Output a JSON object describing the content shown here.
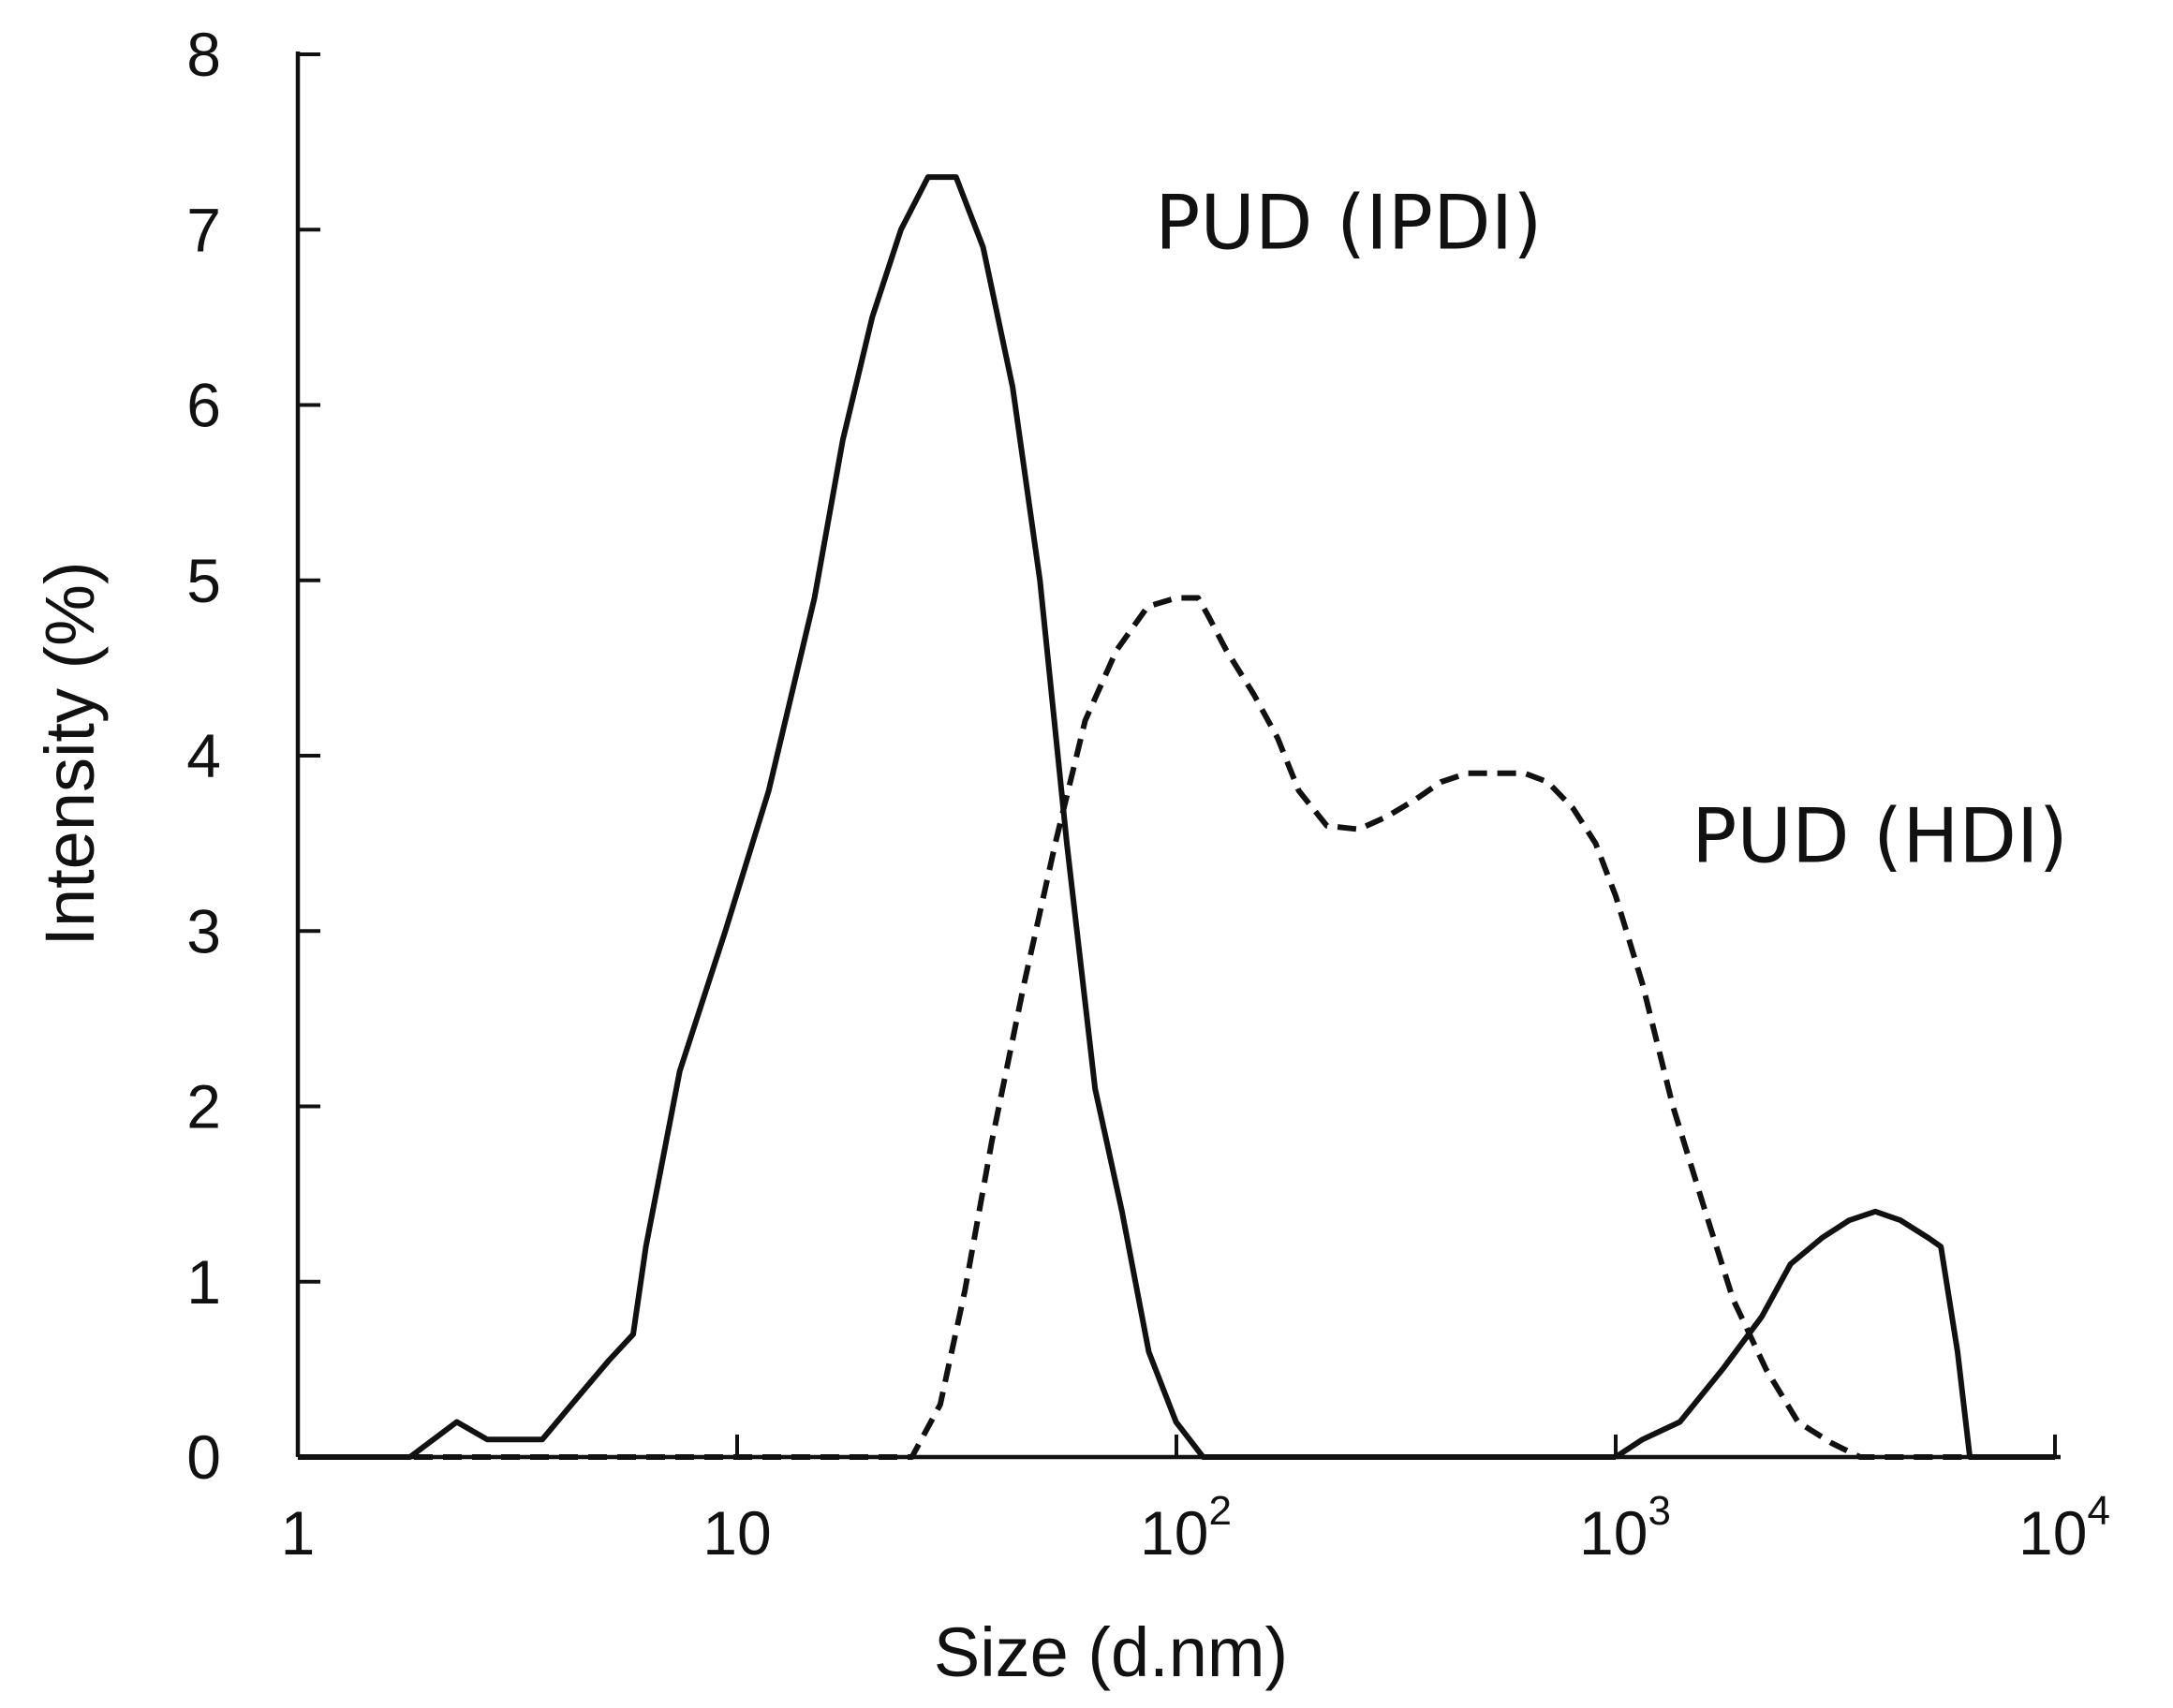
{
  "chart_data": {
    "type": "line",
    "title": "",
    "xlabel": "Size (d.nm)",
    "ylabel": "Intensity (%)",
    "xscale": "log",
    "xlim": [
      1,
      10000
    ],
    "ylim": [
      0,
      8
    ],
    "grid": false,
    "legend": "none",
    "x_ticks": [
      {
        "value": 1,
        "base": "1",
        "exp": ""
      },
      {
        "value": 10,
        "base": "10",
        "exp": ""
      },
      {
        "value": 100,
        "base": "10",
        "exp": "2"
      },
      {
        "value": 1000,
        "base": "10",
        "exp": "3"
      },
      {
        "value": 10000,
        "base": "10",
        "exp": "4"
      }
    ],
    "y_ticks": [
      "0",
      "1",
      "2",
      "3",
      "4",
      "5",
      "6",
      "7",
      "8"
    ],
    "annotations": [
      {
        "text": "PUD (IPDI)",
        "x": 120,
        "y": 7.0
      },
      {
        "text": "PUD (HDI)",
        "x": 2000,
        "y": 3.5
      }
    ],
    "series": [
      {
        "style": "solid",
        "color": "#111111",
        "x": [
          1,
          1.8,
          2.3,
          2.7,
          3.6,
          4.2,
          5.1,
          5.8,
          6.2,
          7.4,
          9.4,
          11.8,
          15,
          17.4,
          20.3,
          23.6,
          27.2,
          31.5,
          36.3,
          42.4,
          48.9,
          56.3,
          65.3,
          75.2,
          86.5,
          99.8,
          115,
          133,
          146,
          1000
        ],
        "y": [
          0,
          0,
          0.2,
          0.1,
          0.1,
          0.3,
          0.55,
          0.7,
          1.2,
          2.2,
          3.0,
          3.8,
          4.9,
          5.8,
          6.5,
          7.0,
          7.3,
          7.3,
          6.9,
          6.1,
          5.0,
          3.5,
          2.1,
          1.4,
          0.6,
          0.2,
          0,
          0,
          0,
          0
        ]
      },
      {
        "style": "dashed",
        "color": "#111111",
        "x": [
          1,
          2,
          5,
          10,
          20,
          25,
          29,
          33,
          38,
          45,
          53,
          62,
          73,
          86,
          100,
          112,
          118,
          130,
          150,
          170,
          190,
          220,
          260,
          300,
          350,
          400,
          460,
          540,
          620,
          700,
          800,
          900,
          1000,
          1150,
          1350,
          1600,
          1850,
          2200,
          2600,
          3100,
          3600,
          4000,
          4500,
          5500,
          6500
        ],
        "y": [
          0,
          0,
          0,
          0,
          0,
          0,
          0.3,
          0.95,
          1.8,
          2.7,
          3.5,
          4.2,
          4.6,
          4.85,
          4.9,
          4.9,
          4.8,
          4.6,
          4.35,
          4.1,
          3.8,
          3.6,
          3.58,
          3.65,
          3.75,
          3.85,
          3.9,
          3.9,
          3.9,
          3.85,
          3.7,
          3.5,
          3.2,
          2.7,
          2.0,
          1.4,
          0.9,
          0.5,
          0.2,
          0.08,
          0,
          0,
          0,
          0,
          0
        ]
      },
      {
        "style": "solid",
        "color": "#111111",
        "x": [
          1000,
          1150,
          1400,
          1750,
          2150,
          2500,
          2950,
          3400,
          3900,
          4450,
          5150,
          5500,
          6000,
          6400,
          10000
        ],
        "y": [
          0,
          0.1,
          0.2,
          0.5,
          0.8,
          1.1,
          1.25,
          1.35,
          1.4,
          1.35,
          1.25,
          1.2,
          0.6,
          0,
          0
        ]
      }
    ]
  }
}
